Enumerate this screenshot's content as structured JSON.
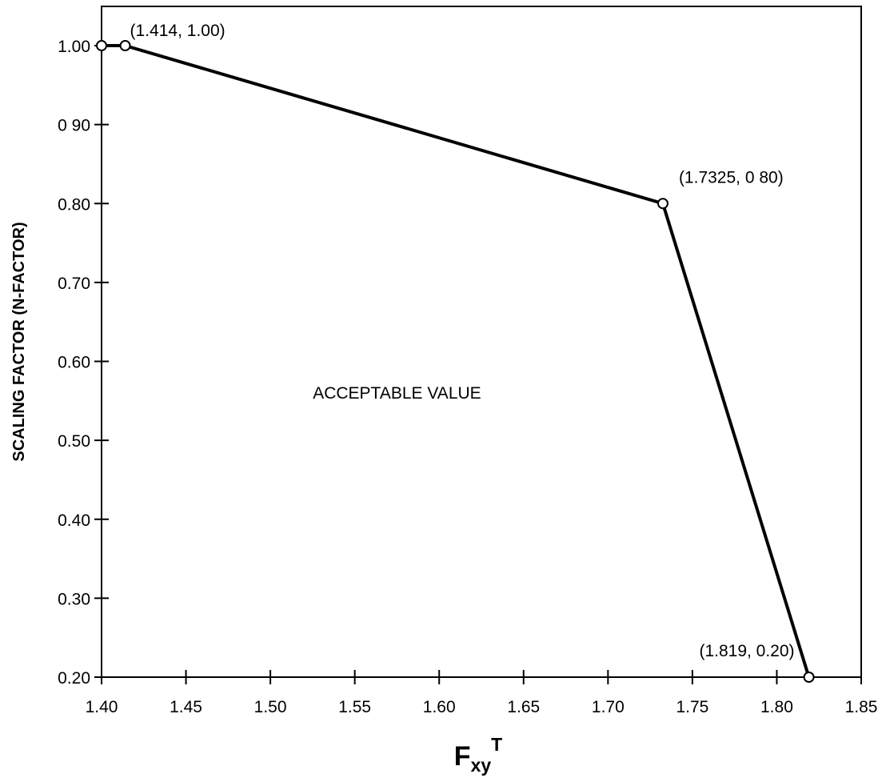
{
  "chart_data": {
    "type": "line",
    "title": "",
    "xlabel": {
      "main": "F",
      "subscript": "xy",
      "superscript": "T"
    },
    "ylabel": "SCALING FACTOR (N-FACTOR)",
    "xlim": [
      1.4,
      1.85
    ],
    "ylim": [
      0.2,
      1.05
    ],
    "x_ticks": [
      1.4,
      1.45,
      1.5,
      1.55,
      1.6,
      1.65,
      1.7,
      1.75,
      1.8,
      1.85
    ],
    "x_tick_labels": [
      "1.40",
      "1.45",
      "1.50",
      "1.55",
      "1.60",
      "1.65",
      "1.70",
      "1.75",
      "1.80",
      "1.85"
    ],
    "y_ticks": [
      0.2,
      0.3,
      0.4,
      0.5,
      0.6,
      0.7,
      0.8,
      0.9,
      1.0
    ],
    "y_tick_labels": [
      "0.20",
      "0.30",
      "0.40",
      "0.50",
      "0.60",
      "0.70",
      "0.80",
      "0 90",
      "1.00"
    ],
    "grid": false,
    "series": [
      {
        "x": [
          1.4,
          1.414,
          1.7325,
          1.819
        ],
        "y": [
          1.0,
          1.0,
          0.8,
          0.2
        ]
      }
    ],
    "annotations": [
      {
        "text": "(1.414, 1.00)",
        "x": 1.414,
        "y": 1.0
      },
      {
        "text": "(1.7325, 0 80)",
        "x": 1.7325,
        "y": 0.8
      },
      {
        "text": "(1.819, 0.20)",
        "x": 1.819,
        "y": 0.2
      }
    ],
    "region_label": {
      "text": "ACCEPTABLE VALUE",
      "x": 1.575,
      "y": 0.55
    },
    "colors": {
      "line": "#000000",
      "marker_fill": "#ffffff",
      "axes": "#000000"
    }
  }
}
